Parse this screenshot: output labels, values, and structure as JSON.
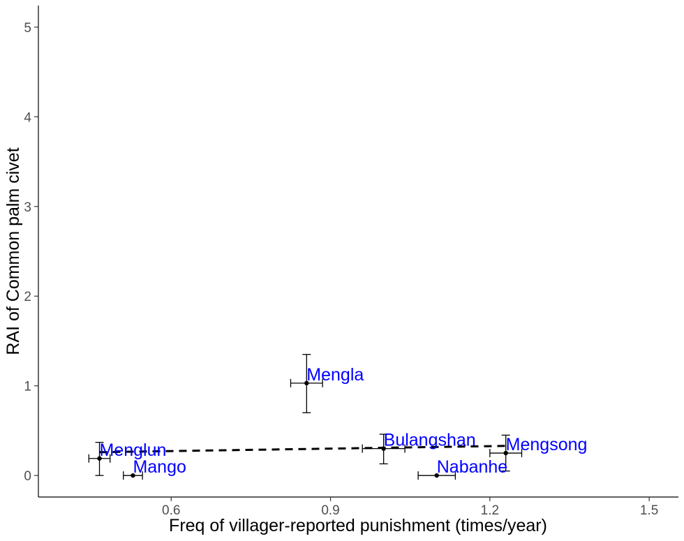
{
  "chart_data": {
    "type": "scatter",
    "title": "",
    "xlabel": "Freq of villager-reported punishment (times/year)",
    "ylabel": "RAI of Common palm civet",
    "xlim": [
      0.35,
      1.555
    ],
    "ylim": [
      -0.24,
      5.24
    ],
    "x_ticks": [
      0.6,
      0.9,
      1.2,
      1.5
    ],
    "y_ticks": [
      0,
      1,
      2,
      3,
      4,
      5
    ],
    "grid": false,
    "points": [
      {
        "label": "Menglun",
        "x": 0.465,
        "y": 0.19,
        "xerr": [
          0.445,
          0.485
        ],
        "yerr": [
          0.0,
          0.37
        ]
      },
      {
        "label": "Mango",
        "x": 0.528,
        "y": 0.0,
        "xerr": [
          0.51,
          0.546
        ],
        "yerr": [
          0.0,
          0.0
        ]
      },
      {
        "label": "Mengla",
        "x": 0.855,
        "y": 1.03,
        "xerr": [
          0.825,
          0.885
        ],
        "yerr": [
          0.7,
          1.35
        ]
      },
      {
        "label": "Bulangshan",
        "x": 1.0,
        "y": 0.3,
        "xerr": [
          0.96,
          1.04
        ],
        "yerr": [
          0.13,
          0.46
        ]
      },
      {
        "label": "Nabanhe",
        "x": 1.1,
        "y": 0.0,
        "xerr": [
          1.065,
          1.135
        ],
        "yerr": [
          0.0,
          0.0
        ]
      },
      {
        "label": "Mengsong",
        "x": 1.23,
        "y": 0.25,
        "xerr": [
          1.2,
          1.26
        ],
        "yerr": [
          0.05,
          0.45
        ]
      }
    ],
    "trend_line": {
      "style": "dashed",
      "x": [
        0.465,
        1.23
      ],
      "y": [
        0.26,
        0.33
      ]
    },
    "label_color": "#0000ff",
    "point_color": "#000000"
  }
}
